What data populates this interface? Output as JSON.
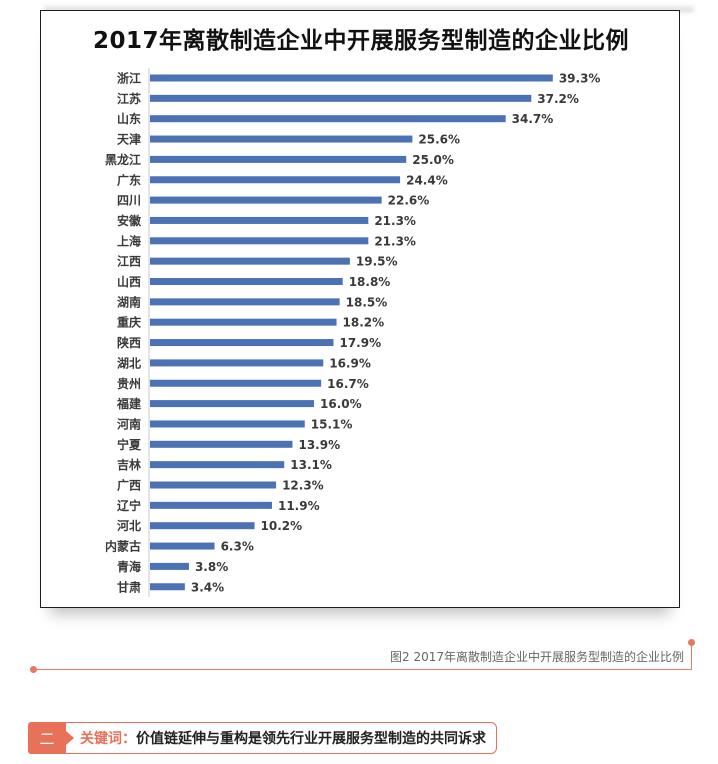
{
  "chart_data": {
    "type": "bar",
    "orientation": "horizontal",
    "title": "2017年离散制造企业中开展服务型制造的企业比例",
    "categories": [
      "浙江",
      "江苏",
      "山东",
      "天津",
      "黑龙江",
      "广东",
      "四川",
      "安徽",
      "上海",
      "江西",
      "山西",
      "湖南",
      "重庆",
      "陕西",
      "湖北",
      "贵州",
      "福建",
      "河南",
      "宁夏",
      "吉林",
      "广西",
      "辽宁",
      "河北",
      "内蒙古",
      "青海",
      "甘肃"
    ],
    "values": [
      39.3,
      37.2,
      34.7,
      25.6,
      25.0,
      24.4,
      22.6,
      21.3,
      21.3,
      19.5,
      18.8,
      18.5,
      18.2,
      17.9,
      16.9,
      16.7,
      16.0,
      15.1,
      13.9,
      13.1,
      12.3,
      11.9,
      10.2,
      6.3,
      3.8,
      3.4
    ],
    "data_labels": [
      "39.3%",
      "37.2%",
      "34.7%",
      "25.6%",
      "25.0%",
      "24.4%",
      "22.6%",
      "21.3%",
      "21.3%",
      "19.5%",
      "18.8%",
      "18.5%",
      "18.2%",
      "17.9%",
      "16.9%",
      "16.7%",
      "16.0%",
      "15.1%",
      "13.9%",
      "13.1%",
      "12.3%",
      "11.9%",
      "10.2%",
      "6.3%",
      "3.8%",
      "3.4%"
    ],
    "xlim": [
      0,
      40
    ],
    "unit": "%",
    "grid": false,
    "bar_color": "#4a72b4"
  },
  "caption": {
    "text": "图2 2017年离散制造企业中开展服务型制造的企业比例"
  },
  "section": {
    "number": "二",
    "key_label": "关键词：",
    "text": "价值链延伸与重构是领先行业开展服务型制造的共同诉求"
  },
  "colors": {
    "accent": "#e8715a",
    "bar": "#4a72b4"
  }
}
